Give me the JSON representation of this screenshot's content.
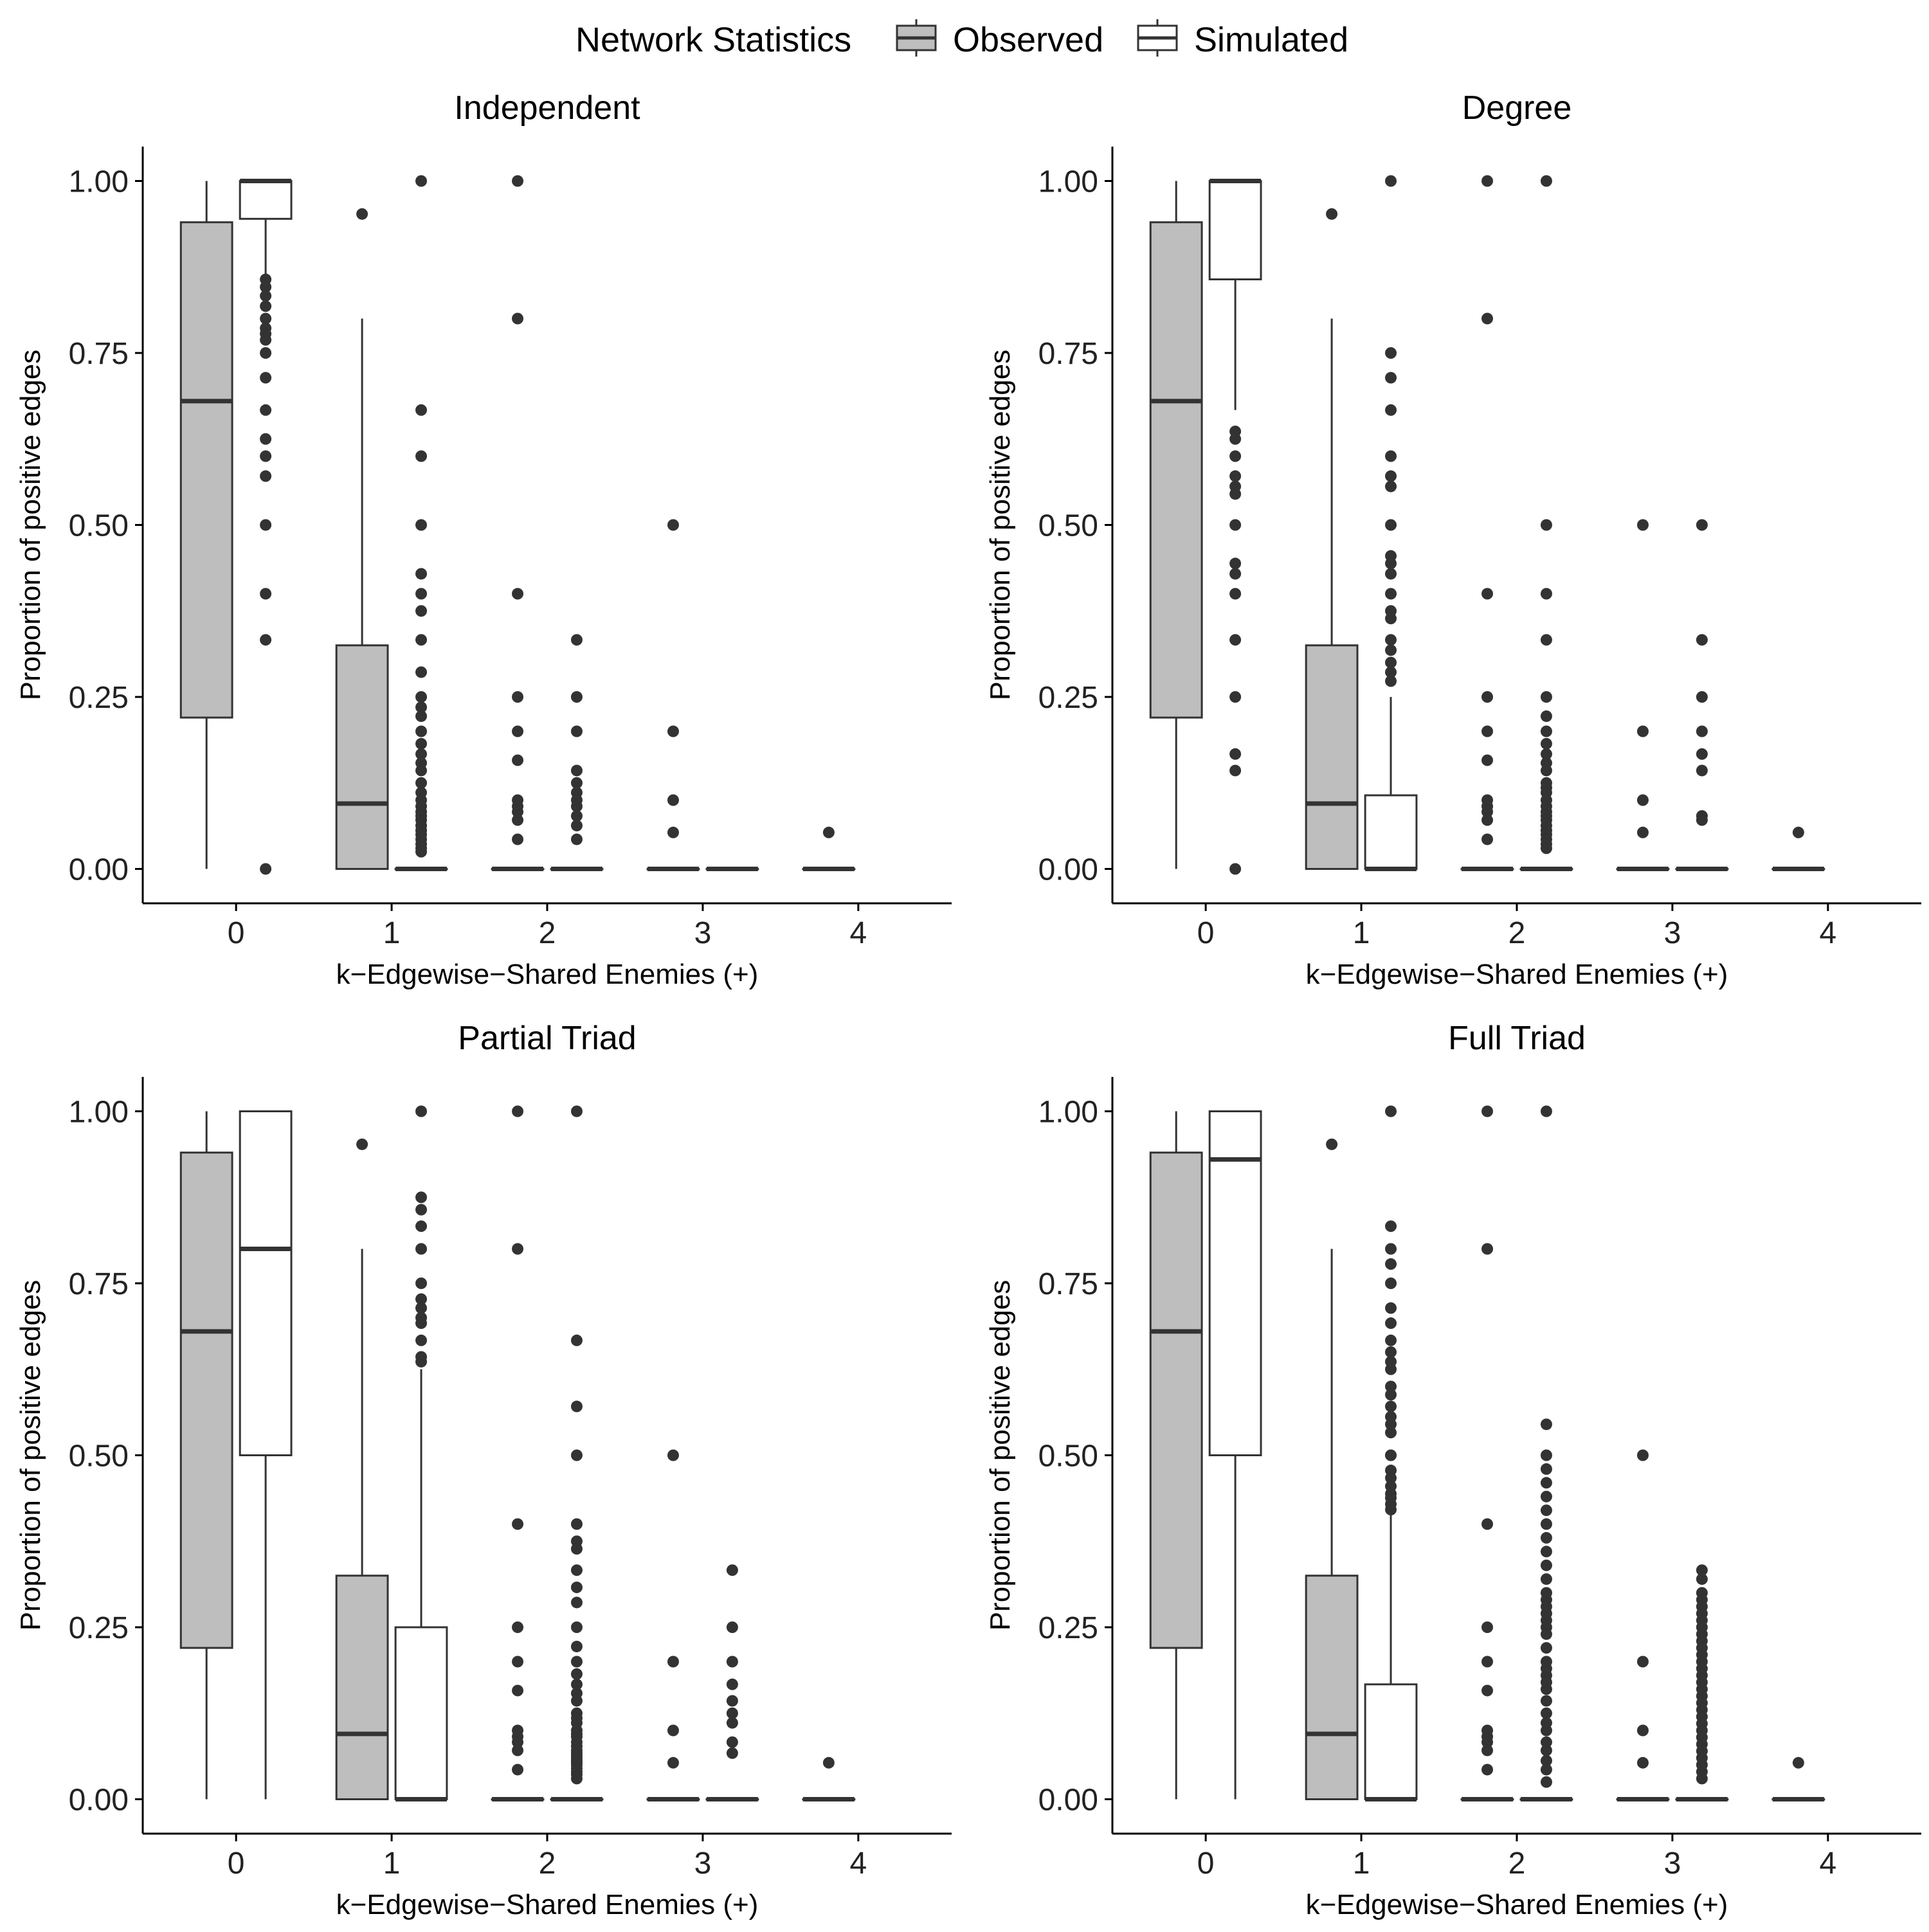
{
  "legend": {
    "title": "Network Statistics",
    "items": [
      {
        "label": "Observed",
        "fill": "#bebebe"
      },
      {
        "label": "Simulated",
        "fill": "#ffffff"
      }
    ]
  },
  "colors": {
    "observed_fill": "#bebebe",
    "simulated_fill": "#ffffff",
    "stroke": "#333333",
    "axis": "#000000"
  },
  "chart_data": [
    {
      "type": "boxplot",
      "title": "Independent",
      "xlabel": "k−Edgewise−Shared Enemies (+)",
      "ylabel": "Proportion of positive edges",
      "x_ticks": [
        "0",
        "1",
        "2",
        "3",
        "4"
      ],
      "y_ticks": [
        "0.00",
        "0.25",
        "0.50",
        "0.75",
        "1.00"
      ],
      "ylim": [
        -0.05,
        1.05
      ],
      "xlim": [
        -0.6,
        4.6
      ],
      "series": [
        {
          "name": "Observed",
          "boxes": [
            {
              "k": 0,
              "min": 0.0,
              "q1": 0.22,
              "median": 0.68,
              "q3": 0.94,
              "max": 1.0,
              "outliers": []
            },
            {
              "k": 1,
              "min": 0.0,
              "q1": 0.0,
              "median": 0.095,
              "q3": 0.325,
              "max": 0.8,
              "outliers": [
                0.952
              ]
            },
            {
              "k": 2,
              "min": 0.0,
              "q1": 0.0,
              "median": 0.0,
              "q3": 0.0,
              "max": 0.0,
              "outliers": [
                1.0,
                0.8,
                0.4,
                0.25,
                0.2,
                0.158,
                0.1,
                0.091,
                0.083,
                0.071,
                0.043
              ]
            },
            {
              "k": 3,
              "min": 0.0,
              "q1": 0.0,
              "median": 0.0,
              "q3": 0.0,
              "max": 0.0,
              "outliers": [
                0.5,
                0.2,
                0.1,
                0.053
              ]
            },
            {
              "k": 4,
              "min": 0.0,
              "q1": 0.0,
              "median": 0.0,
              "q3": 0.0,
              "max": 0.0,
              "outliers": [
                0.053
              ]
            }
          ]
        },
        {
          "name": "Simulated",
          "boxes": [
            {
              "k": 0,
              "min": 0.86,
              "q1": 0.945,
              "median": 1.0,
              "q3": 1.0,
              "max": 1.0,
              "outliers": [
                0.857,
                0.846,
                0.833,
                0.818,
                0.8,
                0.786,
                0.778,
                0.769,
                0.75,
                0.714,
                0.667,
                0.625,
                0.6,
                0.571,
                0.5,
                0.4,
                0.333,
                0.0
              ]
            },
            {
              "k": 1,
              "min": 0.0,
              "q1": 0.0,
              "median": 0.0,
              "q3": 0.0,
              "max": 0.0,
              "outliers": [
                1.0,
                0.667,
                0.6,
                0.5,
                0.429,
                0.4,
                0.375,
                0.333,
                0.286,
                0.25,
                0.235,
                0.222,
                0.2,
                0.182,
                0.167,
                0.154,
                0.143,
                0.125,
                0.111,
                0.1,
                0.091,
                0.083,
                0.077,
                0.071,
                0.063,
                0.056,
                0.05,
                0.043,
                0.036,
                0.03,
                0.025
              ]
            },
            {
              "k": 2,
              "min": 0.0,
              "q1": 0.0,
              "median": 0.0,
              "q3": 0.0,
              "max": 0.0,
              "outliers": [
                0.333,
                0.25,
                0.2,
                0.143,
                0.125,
                0.111,
                0.1,
                0.091,
                0.077,
                0.063,
                0.043
              ]
            },
            {
              "k": 3,
              "min": 0.0,
              "q1": 0.0,
              "median": 0.0,
              "q3": 0.0,
              "max": 0.0,
              "outliers": []
            }
          ]
        }
      ]
    },
    {
      "type": "boxplot",
      "title": "Degree",
      "xlabel": "k−Edgewise−Shared Enemies (+)",
      "ylabel": "Proportion of positive edges",
      "x_ticks": [
        "0",
        "1",
        "2",
        "3",
        "4"
      ],
      "y_ticks": [
        "0.00",
        "0.25",
        "0.50",
        "0.75",
        "1.00"
      ],
      "ylim": [
        -0.05,
        1.05
      ],
      "xlim": [
        -0.6,
        4.6
      ],
      "series": [
        {
          "name": "Observed",
          "boxes": [
            {
              "k": 0,
              "min": 0.0,
              "q1": 0.22,
              "median": 0.68,
              "q3": 0.94,
              "max": 1.0,
              "outliers": []
            },
            {
              "k": 1,
              "min": 0.0,
              "q1": 0.0,
              "median": 0.095,
              "q3": 0.325,
              "max": 0.8,
              "outliers": [
                0.952
              ]
            },
            {
              "k": 2,
              "min": 0.0,
              "q1": 0.0,
              "median": 0.0,
              "q3": 0.0,
              "max": 0.0,
              "outliers": [
                1.0,
                0.8,
                0.4,
                0.25,
                0.2,
                0.158,
                0.1,
                0.091,
                0.083,
                0.071,
                0.043
              ]
            },
            {
              "k": 3,
              "min": 0.0,
              "q1": 0.0,
              "median": 0.0,
              "q3": 0.0,
              "max": 0.0,
              "outliers": [
                0.5,
                0.2,
                0.1,
                0.053
              ]
            },
            {
              "k": 4,
              "min": 0.0,
              "q1": 0.0,
              "median": 0.0,
              "q3": 0.0,
              "max": 0.0,
              "outliers": [
                0.053
              ]
            }
          ]
        },
        {
          "name": "Simulated",
          "boxes": [
            {
              "k": 0,
              "min": 0.667,
              "q1": 0.857,
              "median": 1.0,
              "q3": 1.0,
              "max": 1.0,
              "outliers": [
                0.636,
                0.625,
                0.6,
                0.571,
                0.556,
                0.545,
                0.5,
                0.444,
                0.429,
                0.4,
                0.333,
                0.25,
                0.167,
                0.143,
                0.0
              ]
            },
            {
              "k": 1,
              "min": 0.0,
              "q1": 0.0,
              "median": 0.0,
              "q3": 0.107,
              "max": 0.25,
              "outliers": [
                1.0,
                0.75,
                0.714,
                0.667,
                0.6,
                0.571,
                0.556,
                0.5,
                0.455,
                0.444,
                0.429,
                0.4,
                0.375,
                0.364,
                0.333,
                0.318,
                0.3,
                0.286,
                0.273
              ]
            },
            {
              "k": 2,
              "min": 0.0,
              "q1": 0.0,
              "median": 0.0,
              "q3": 0.0,
              "max": 0.0,
              "outliers": [
                1.0,
                0.5,
                0.4,
                0.333,
                0.25,
                0.222,
                0.2,
                0.182,
                0.167,
                0.154,
                0.143,
                0.125,
                0.118,
                0.111,
                0.1,
                0.091,
                0.083,
                0.077,
                0.071,
                0.063,
                0.056,
                0.05,
                0.043,
                0.036,
                0.03
              ]
            },
            {
              "k": 3,
              "min": 0.0,
              "q1": 0.0,
              "median": 0.0,
              "q3": 0.0,
              "max": 0.0,
              "outliers": [
                0.5,
                0.333,
                0.25,
                0.2,
                0.167,
                0.143,
                0.077,
                0.071
              ]
            }
          ]
        }
      ]
    },
    {
      "type": "boxplot",
      "title": "Partial Triad",
      "xlabel": "k−Edgewise−Shared Enemies (+)",
      "ylabel": "Proportion of positive edges",
      "x_ticks": [
        "0",
        "1",
        "2",
        "3",
        "4"
      ],
      "y_ticks": [
        "0.00",
        "0.25",
        "0.50",
        "0.75",
        "1.00"
      ],
      "ylim": [
        -0.05,
        1.05
      ],
      "xlim": [
        -0.6,
        4.6
      ],
      "series": [
        {
          "name": "Observed",
          "boxes": [
            {
              "k": 0,
              "min": 0.0,
              "q1": 0.22,
              "median": 0.68,
              "q3": 0.94,
              "max": 1.0,
              "outliers": []
            },
            {
              "k": 1,
              "min": 0.0,
              "q1": 0.0,
              "median": 0.095,
              "q3": 0.325,
              "max": 0.8,
              "outliers": [
                0.952
              ]
            },
            {
              "k": 2,
              "min": 0.0,
              "q1": 0.0,
              "median": 0.0,
              "q3": 0.0,
              "max": 0.0,
              "outliers": [
                1.0,
                0.8,
                0.4,
                0.25,
                0.2,
                0.158,
                0.1,
                0.091,
                0.083,
                0.071,
                0.043
              ]
            },
            {
              "k": 3,
              "min": 0.0,
              "q1": 0.0,
              "median": 0.0,
              "q3": 0.0,
              "max": 0.0,
              "outliers": [
                0.5,
                0.2,
                0.1,
                0.053
              ]
            },
            {
              "k": 4,
              "min": 0.0,
              "q1": 0.0,
              "median": 0.0,
              "q3": 0.0,
              "max": 0.0,
              "outliers": [
                0.053
              ]
            }
          ]
        },
        {
          "name": "Simulated",
          "boxes": [
            {
              "k": 0,
              "min": 0.0,
              "q1": 0.5,
              "median": 0.8,
              "q3": 1.0,
              "max": 1.0,
              "outliers": []
            },
            {
              "k": 1,
              "min": 0.0,
              "q1": 0.0,
              "median": 0.0,
              "q3": 0.25,
              "max": 0.625,
              "outliers": [
                1.0,
                0.875,
                0.857,
                0.833,
                0.8,
                0.75,
                0.727,
                0.714,
                0.7,
                0.692,
                0.667,
                0.643,
                0.636
              ]
            },
            {
              "k": 2,
              "min": 0.0,
              "q1": 0.0,
              "median": 0.0,
              "q3": 0.0,
              "max": 0.0,
              "outliers": [
                1.0,
                0.667,
                0.571,
                0.5,
                0.4,
                0.375,
                0.364,
                0.333,
                0.308,
                0.286,
                0.25,
                0.222,
                0.2,
                0.182,
                0.167,
                0.154,
                0.143,
                0.125,
                0.118,
                0.111,
                0.1,
                0.095,
                0.091,
                0.083,
                0.077,
                0.071,
                0.067,
                0.063,
                0.059,
                0.056,
                0.053,
                0.05,
                0.045,
                0.04,
                0.036,
                0.03
              ]
            },
            {
              "k": 3,
              "min": 0.0,
              "q1": 0.0,
              "median": 0.0,
              "q3": 0.0,
              "max": 0.0,
              "outliers": [
                0.333,
                0.25,
                0.2,
                0.167,
                0.143,
                0.125,
                0.111,
                0.083,
                0.067
              ]
            }
          ]
        }
      ]
    },
    {
      "type": "boxplot",
      "title": "Full Triad",
      "xlabel": "k−Edgewise−Shared Enemies (+)",
      "ylabel": "Proportion of positive edges",
      "x_ticks": [
        "0",
        "1",
        "2",
        "3",
        "4"
      ],
      "y_ticks": [
        "0.00",
        "0.25",
        "0.50",
        "0.75",
        "1.00"
      ],
      "ylim": [
        -0.05,
        1.05
      ],
      "xlim": [
        -0.6,
        4.6
      ],
      "series": [
        {
          "name": "Observed",
          "boxes": [
            {
              "k": 0,
              "min": 0.0,
              "q1": 0.22,
              "median": 0.68,
              "q3": 0.94,
              "max": 1.0,
              "outliers": []
            },
            {
              "k": 1,
              "min": 0.0,
              "q1": 0.0,
              "median": 0.095,
              "q3": 0.325,
              "max": 0.8,
              "outliers": [
                0.952
              ]
            },
            {
              "k": 2,
              "min": 0.0,
              "q1": 0.0,
              "median": 0.0,
              "q3": 0.0,
              "max": 0.0,
              "outliers": [
                1.0,
                0.8,
                0.4,
                0.25,
                0.2,
                0.158,
                0.1,
                0.091,
                0.083,
                0.071,
                0.043
              ]
            },
            {
              "k": 3,
              "min": 0.0,
              "q1": 0.0,
              "median": 0.0,
              "q3": 0.0,
              "max": 0.0,
              "outliers": [
                0.5,
                0.2,
                0.1,
                0.053
              ]
            },
            {
              "k": 4,
              "min": 0.0,
              "q1": 0.0,
              "median": 0.0,
              "q3": 0.0,
              "max": 0.0,
              "outliers": [
                0.053
              ]
            }
          ]
        },
        {
          "name": "Simulated",
          "boxes": [
            {
              "k": 0,
              "min": 0.0,
              "q1": 0.5,
              "median": 0.93,
              "q3": 1.0,
              "max": 1.0,
              "outliers": []
            },
            {
              "k": 1,
              "min": 0.0,
              "q1": 0.0,
              "median": 0.0,
              "q3": 0.167,
              "max": 0.417,
              "outliers": [
                1.0,
                0.833,
                0.8,
                0.778,
                0.75,
                0.714,
                0.692,
                0.667,
                0.65,
                0.636,
                0.625,
                0.6,
                0.588,
                0.571,
                0.556,
                0.545,
                0.533,
                0.5,
                0.5,
                0.478,
                0.467,
                0.455,
                0.444,
                0.438,
                0.429,
                0.421
              ]
            },
            {
              "k": 2,
              "min": 0.0,
              "q1": 0.0,
              "median": 0.0,
              "q3": 0.0,
              "max": 0.0,
              "outliers": [
                1.0,
                0.545,
                0.5,
                0.48,
                0.46,
                0.44,
                0.42,
                0.4,
                0.38,
                0.36,
                0.34,
                0.32,
                0.3,
                0.29,
                0.28,
                0.27,
                0.26,
                0.25,
                0.24,
                0.22,
                0.2,
                0.19,
                0.18,
                0.17,
                0.16,
                0.143,
                0.125,
                0.111,
                0.1,
                0.083,
                0.071,
                0.056,
                0.043,
                0.025
              ]
            },
            {
              "k": 3,
              "min": 0.0,
              "q1": 0.0,
              "median": 0.0,
              "q3": 0.0,
              "max": 0.0,
              "outliers": [
                0.333,
                0.32,
                0.3,
                0.29,
                0.28,
                0.27,
                0.26,
                0.25,
                0.24,
                0.23,
                0.22,
                0.21,
                0.2,
                0.19,
                0.18,
                0.17,
                0.16,
                0.15,
                0.14,
                0.13,
                0.12,
                0.11,
                0.1,
                0.09,
                0.08,
                0.07,
                0.06,
                0.05,
                0.04,
                0.03
              ]
            }
          ]
        }
      ]
    }
  ]
}
